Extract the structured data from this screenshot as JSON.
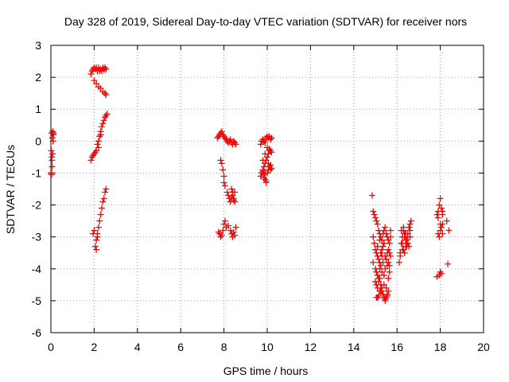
{
  "chart_data": {
    "type": "scatter",
    "title": "Day 328 of 2019, Sidereal Day-to-day VTEC variation (SDTVAR) for receiver nors",
    "xlabel": "GPS time / hours",
    "ylabel": "SDTVAR / TECUs",
    "xlim": [
      0,
      20
    ],
    "ylim": [
      -6,
      3
    ],
    "xticks": [
      0,
      2,
      4,
      6,
      8,
      10,
      12,
      14,
      16,
      18,
      20
    ],
    "yticks": [
      -6,
      -5,
      -4,
      -3,
      -2,
      -1,
      0,
      1,
      2,
      3
    ],
    "grid": true,
    "marker": "+",
    "marker_color": "#ff0000",
    "series": [
      {
        "name": "SDTVAR",
        "x": [
          0.0,
          0.03,
          0.05,
          0.08,
          0.1,
          0.12,
          0.07,
          0.04,
          0.02,
          0.06,
          0.09,
          0.11,
          0.05,
          0.03,
          1.85,
          1.9,
          1.95,
          2.0,
          2.05,
          2.1,
          2.15,
          2.2,
          2.25,
          2.3,
          2.35,
          2.4,
          2.45,
          2.5,
          2.55,
          2.0,
          2.1,
          2.2,
          2.3,
          2.4,
          2.5,
          2.55,
          1.85,
          1.9,
          1.95,
          2.0,
          2.05,
          2.1,
          2.15,
          2.2,
          2.25,
          2.3,
          2.35,
          2.4,
          2.45,
          2.5,
          2.55,
          2.6,
          2.2,
          2.3,
          1.95,
          2.0,
          2.05,
          2.1,
          2.15,
          2.2,
          2.25,
          2.3,
          2.35,
          2.4,
          2.45,
          2.5,
          2.55,
          2.1,
          2.15,
          7.7,
          7.75,
          7.8,
          7.85,
          7.9,
          7.95,
          8.0,
          8.05,
          8.1,
          8.15,
          8.2,
          8.25,
          8.3,
          8.35,
          8.4,
          8.45,
          8.5,
          8.55,
          7.85,
          7.9,
          7.95,
          8.0,
          8.0,
          8.05,
          8.15,
          8.2,
          8.25,
          8.3,
          8.35,
          8.4,
          8.45,
          8.5,
          8.35,
          8.4,
          8.45,
          8.5,
          7.75,
          7.8,
          7.85,
          7.9,
          7.95,
          8.0,
          8.05,
          8.1,
          8.2,
          8.3,
          8.35,
          8.4,
          8.45,
          8.5,
          8.55,
          9.7,
          9.75,
          9.8,
          9.85,
          9.9,
          9.95,
          10.0,
          10.05,
          10.1,
          10.15,
          10.2,
          9.75,
          9.8,
          9.85,
          9.9,
          9.95,
          10.0,
          10.05,
          10.1,
          10.15,
          10.2,
          9.7,
          9.75,
          9.8,
          9.85,
          9.9,
          9.95,
          10.0,
          10.05,
          10.1,
          10.15,
          10.2,
          9.8,
          9.9,
          10.0,
          10.1,
          9.85,
          9.95,
          10.05,
          10.15,
          9.9,
          14.85,
          14.9,
          14.95,
          15.0,
          15.05,
          15.1,
          15.15,
          15.2,
          15.25,
          15.3,
          15.35,
          15.4,
          15.45,
          15.5,
          15.55,
          15.6,
          15.65,
          15.7,
          14.9,
          14.95,
          15.0,
          15.05,
          15.1,
          15.15,
          15.2,
          15.25,
          15.3,
          15.35,
          15.4,
          15.45,
          15.5,
          15.55,
          15.6,
          15.65,
          14.9,
          15.0,
          15.05,
          15.1,
          15.15,
          15.2,
          15.25,
          15.3,
          15.35,
          15.4,
          15.45,
          15.5,
          15.55,
          15.6,
          15.65,
          15.7,
          15.0,
          15.05,
          15.1,
          15.15,
          15.2,
          15.25,
          15.3,
          15.35,
          15.4,
          15.45,
          15.5,
          15.55,
          15.6,
          15.1,
          15.2,
          15.3,
          15.4,
          15.5,
          15.05,
          15.15,
          15.25,
          15.35,
          15.45,
          15.55,
          15.1,
          15.2,
          15.3,
          15.4,
          15.5,
          15.6,
          15.65,
          15.7,
          16.1,
          16.15,
          16.2,
          16.25,
          16.3,
          16.35,
          16.4,
          16.45,
          16.5,
          16.55,
          16.6,
          16.65,
          16.2,
          16.25,
          16.3,
          16.35,
          16.4,
          16.45,
          16.5,
          16.55,
          16.6,
          16.15,
          16.25,
          16.35,
          16.45,
          16.55,
          16.3,
          16.4,
          16.5,
          16.6,
          17.85,
          17.9,
          17.95,
          18.0,
          18.05,
          18.1,
          17.9,
          17.95,
          18.0,
          18.05,
          18.1,
          17.85,
          17.95,
          18.05,
          18.0,
          18.1,
          18.3,
          18.4,
          18.35,
          17.9,
          18.0,
          18.1
        ],
        "y": [
          -1.0,
          -1.05,
          -0.6,
          -0.4,
          0.0,
          0.2,
          0.1,
          0.25,
          -0.3,
          -0.8,
          0.3,
          0.25,
          -0.5,
          -1.0,
          2.1,
          2.2,
          2.25,
          2.3,
          2.25,
          2.3,
          2.2,
          2.3,
          2.2,
          2.25,
          2.2,
          2.3,
          2.25,
          2.3,
          2.25,
          1.9,
          1.8,
          1.7,
          1.65,
          1.55,
          1.5,
          1.45,
          -0.6,
          -0.5,
          -0.45,
          -0.4,
          -0.35,
          -0.3,
          -0.1,
          0.0,
          0.15,
          0.3,
          0.45,
          0.55,
          0.65,
          0.75,
          0.8,
          0.85,
          -0.2,
          0.2,
          -2.9,
          -2.8,
          -3.3,
          -3.4,
          -3.0,
          -2.7,
          -2.5,
          -2.3,
          -2.1,
          -1.9,
          -1.8,
          -1.6,
          -1.5,
          -3.1,
          -2.9,
          0.1,
          0.15,
          0.2,
          0.25,
          0.3,
          0.2,
          0.15,
          0.1,
          0.05,
          0.0,
          -0.05,
          0.0,
          0.05,
          -0.05,
          -0.1,
          0.0,
          -0.05,
          -0.1,
          -0.6,
          -0.7,
          -0.9,
          -1.1,
          -1.3,
          -1.4,
          -1.6,
          -1.7,
          -1.8,
          -1.9,
          -1.75,
          -1.6,
          -1.85,
          -1.9,
          -1.5,
          -1.7,
          -1.8,
          -1.6,
          -2.85,
          -2.9,
          -3.0,
          -2.95,
          -2.8,
          -2.6,
          -2.5,
          -2.7,
          -2.65,
          -2.8,
          -2.9,
          -3.0,
          -2.85,
          -2.95,
          -2.7,
          -0.1,
          0.0,
          0.05,
          0.0,
          -0.05,
          0.1,
          0.15,
          0.1,
          0.15,
          0.05,
          0.1,
          -1.0,
          -0.9,
          -0.8,
          -0.7,
          -0.6,
          -0.5,
          -0.4,
          -0.3,
          -0.3,
          -0.35,
          -1.1,
          -1.0,
          -0.95,
          -1.05,
          -1.2,
          -1.3,
          -1.0,
          -0.9,
          -0.8,
          -0.75,
          -0.85,
          -0.6,
          -0.4,
          -0.2,
          -0.25,
          -1.15,
          -1.25,
          -0.7,
          -0.9,
          -1.0,
          -1.7,
          -2.2,
          -2.3,
          -2.4,
          -2.5,
          -2.6,
          -2.8,
          -2.9,
          -3.0,
          -3.1,
          -2.9,
          -2.8,
          -2.7,
          -2.9,
          -3.0,
          -3.1,
          -3.2,
          -3.0,
          -3.0,
          -3.2,
          -3.4,
          -3.5,
          -3.6,
          -3.7,
          -3.8,
          -3.5,
          -3.4,
          -3.3,
          -3.2,
          -3.6,
          -3.7,
          -3.5,
          -3.8,
          -3.9,
          -3.8,
          -4.0,
          -4.1,
          -4.2,
          -4.3,
          -4.0,
          -3.9,
          -4.1,
          -3.8,
          -4.2,
          -4.0,
          -3.7,
          -3.9,
          -4.3,
          -4.1,
          -3.6,
          -4.4,
          -4.5,
          -4.6,
          -4.4,
          -4.7,
          -4.5,
          -4.6,
          -4.8,
          -4.9,
          -5.0,
          -4.9,
          -4.8,
          -4.7,
          -4.9,
          -4.3,
          -4.7,
          -4.5,
          -4.6,
          -4.9,
          -4.85,
          -4.7,
          -4.8,
          -4.95,
          -4.85,
          -3.3,
          -3.1,
          -3.6,
          -3.2,
          -2.9,
          -3.4,
          -3.5,
          -2.8,
          -3.8,
          -3.5,
          -3.2,
          -3.0,
          -2.8,
          -2.9,
          -3.1,
          -3.3,
          -3.0,
          -2.7,
          -2.6,
          -2.5,
          -2.8,
          -3.2,
          -3.4,
          -3.5,
          -3.3,
          -3.1,
          -2.9,
          -2.7,
          -3.0,
          -3.6,
          -3.4,
          -3.0,
          -3.2,
          -3.3,
          -2.7,
          -2.9,
          -3.2,
          -2.8,
          -2.3,
          -2.2,
          -2.0,
          -1.8,
          -2.1,
          -2.2,
          -2.9,
          -3.0,
          -2.8,
          -2.7,
          -2.6,
          -4.25,
          -4.2,
          -4.15,
          -4.1,
          -2.9,
          -2.5,
          -2.8,
          -3.85,
          -2.4,
          -2.6,
          -2.3
        ]
      }
    ]
  }
}
